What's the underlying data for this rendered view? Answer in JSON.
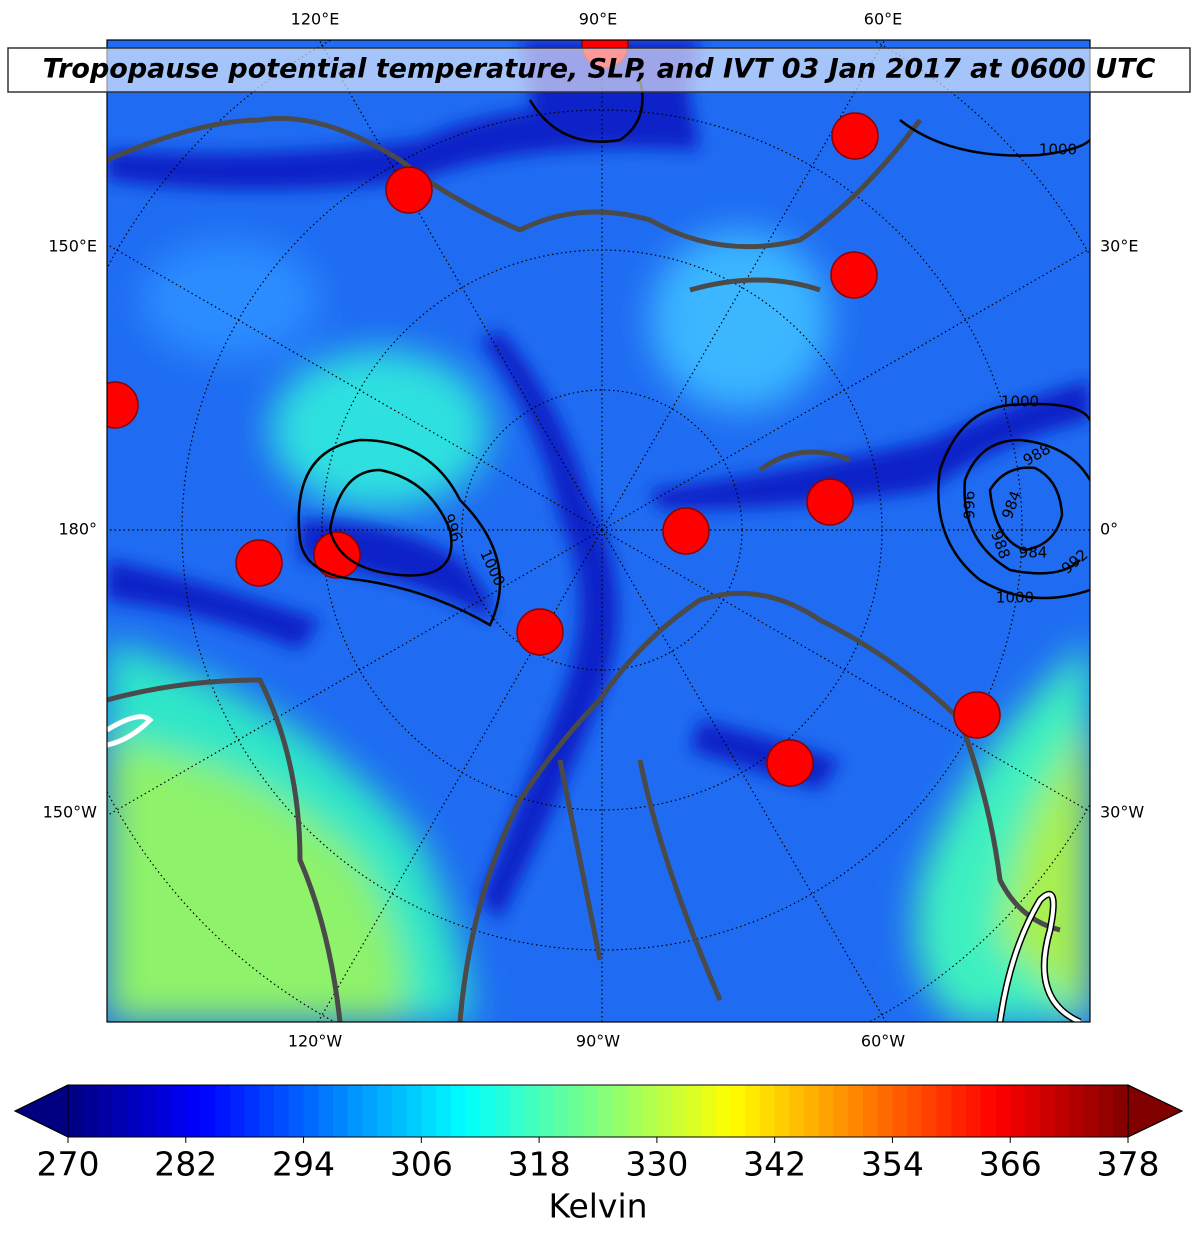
{
  "title": "Tropopause potential temperature, SLP, and IVT 03 Jan 2017 at 0600 UTC",
  "map": {
    "lon_labels": [
      "120°E",
      "90°E",
      "60°E",
      "150°E",
      "30°E",
      "180°",
      "0°",
      "150°W",
      "30°W",
      "120°W",
      "90°W",
      "60°W"
    ],
    "contour_labels": [
      "1000",
      "1000",
      "988",
      "984",
      "996",
      "988",
      "984",
      "992",
      "1000",
      "996",
      "1000"
    ]
  },
  "colorbar": {
    "label": "Kelvin",
    "colormap": "jet",
    "lim": [
      270,
      378
    ],
    "ticks": [
      270,
      282,
      294,
      306,
      318,
      330,
      342,
      354,
      366,
      378
    ]
  }
}
